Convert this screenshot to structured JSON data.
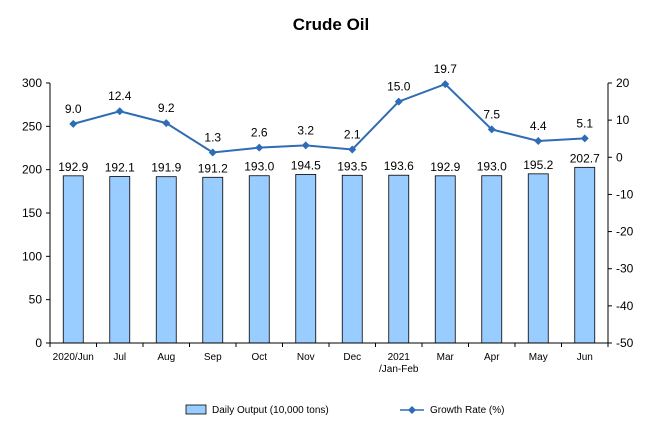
{
  "chart_data": {
    "type": "bar+line",
    "title": "Crude Oil",
    "categories": [
      "2020/Jun",
      "Jul",
      "Aug",
      "Sep",
      "Oct",
      "Nov",
      "Dec",
      "2021\n/Jan-Feb",
      "Mar",
      "Apr",
      "May",
      "Jun"
    ],
    "series": [
      {
        "name": "Daily Output (10,000 tons)",
        "type": "bar",
        "axis": "left",
        "values": [
          192.9,
          192.1,
          191.9,
          191.2,
          193.0,
          194.5,
          193.5,
          193.6,
          192.9,
          193.0,
          195.2,
          202.7
        ],
        "labels": [
          "192.9",
          "192.1",
          "191.9",
          "191.2",
          "193.0",
          "194.5",
          "193.5",
          "193.6",
          "192.9",
          "193.0",
          "195.2",
          "202.7"
        ]
      },
      {
        "name": "Growth Rate (%)",
        "type": "line",
        "axis": "right",
        "values": [
          9.0,
          12.4,
          9.2,
          1.3,
          2.6,
          3.2,
          2.1,
          15.0,
          19.7,
          7.5,
          4.4,
          5.1
        ],
        "labels": [
          "9.0",
          "12.4",
          "9.2",
          "1.3",
          "2.6",
          "3.2",
          "2.1",
          "15.0",
          "19.7",
          "7.5",
          "4.4",
          "5.1"
        ]
      }
    ],
    "y_left": {
      "lim": [
        0,
        300
      ],
      "ticks": [
        0,
        50,
        100,
        150,
        200,
        250,
        300
      ]
    },
    "y_right": {
      "lim": [
        -50,
        20
      ],
      "ticks": [
        -50,
        -40,
        -30,
        -20,
        -10,
        0,
        10,
        20
      ]
    },
    "grid": false,
    "legend_position": "bottom",
    "colors": {
      "bar_fill": "#99CCFF",
      "bar_stroke": "#000000",
      "line": "#2E6CB5",
      "axis": "#000000"
    }
  }
}
